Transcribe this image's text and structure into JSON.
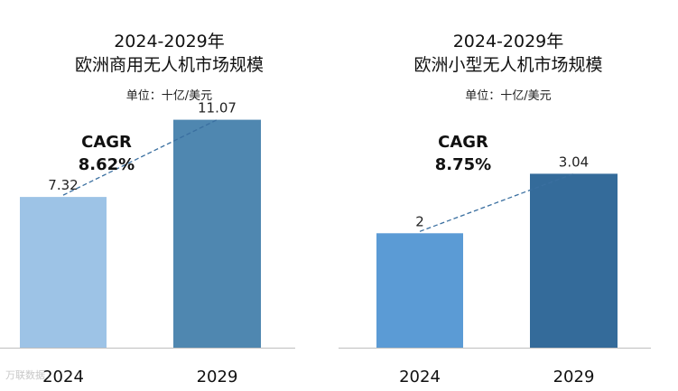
{
  "chart_data": [
    {
      "type": "bar",
      "title_line1": "2024-2029年",
      "title_line2": "欧洲商用无人机市场规模",
      "unit": "单位：十亿/美元",
      "categories": [
        "2024",
        "2029"
      ],
      "values": [
        7.32,
        11.07
      ],
      "value_labels": [
        "7.32",
        "11.07"
      ],
      "colors": [
        "#9dc3e6",
        "#4f87b0"
      ],
      "cagr_label": "CAGR",
      "cagr_value": "8.62%",
      "ylim": [
        0,
        15
      ]
    },
    {
      "type": "bar",
      "title_line1": "2024-2029年",
      "title_line2": "欧洲小型无人机市场规模",
      "unit": "单位：十亿/美元",
      "categories": [
        "2024",
        "2029"
      ],
      "values": [
        2,
        3.04
      ],
      "value_labels": [
        "2",
        "3.04"
      ],
      "colors": [
        "#5b9bd5",
        "#346b9a"
      ],
      "cagr_label": "CAGR",
      "cagr_value": "8.75%",
      "ylim": [
        0,
        4.12
      ]
    }
  ],
  "watermark": "万联数据"
}
